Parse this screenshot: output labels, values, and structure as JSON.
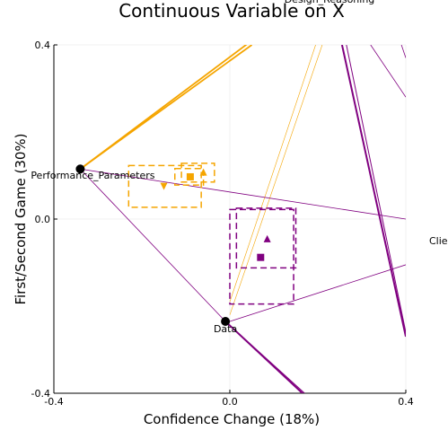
{
  "chart_data": {
    "type": "scatter",
    "title": "Continuous Variable on X",
    "xlabel": "Confidence Change (18%)",
    "ylabel": "First/Second Game (30%)",
    "xlim": [
      -0.4,
      0.4
    ],
    "ylim": [
      -0.4,
      0.4
    ],
    "xticks": [
      "-0.4",
      "0.0",
      "0.4"
    ],
    "yticks": [
      "-0.4",
      "0.0",
      "0.4"
    ],
    "grid": true,
    "legend": "none",
    "colors": {
      "orange": "#f5a500",
      "purple": "#800080",
      "node": "#000000"
    },
    "nodes": [
      {
        "label": "Performance_Parameters",
        "x": -0.34,
        "y": 0.115
      },
      {
        "label": "Data",
        "x": -0.01,
        "y": -0.235
      },
      {
        "label": "Design_Reasoning",
        "x": 0.2,
        "y": 0.92
      },
      {
        "label": "Clie",
        "x": 0.45,
        "y": -0.05
      }
    ],
    "orange_edges": [
      {
        "from": [
          -0.34,
          0.115
        ],
        "to": [
          0.05,
          0.4
        ]
      },
      {
        "from": [
          -0.34,
          0.115
        ],
        "to": [
          0.05,
          0.41
        ]
      }
    ],
    "orange_thin_edges": [
      {
        "from": [
          0.0,
          -0.19
        ],
        "to": [
          0.195,
          0.4
        ]
      },
      {
        "from": [
          0.0,
          -0.22
        ],
        "to": [
          0.21,
          0.4
        ]
      }
    ],
    "purple_edges": [
      {
        "from": [
          -0.34,
          0.115
        ],
        "to": [
          0.4,
          0.0
        ],
        "width": 0.8
      },
      {
        "from": [
          -0.34,
          0.115
        ],
        "to": [
          -0.01,
          -0.235
        ],
        "width": 0.8
      },
      {
        "from": [
          -0.01,
          -0.235
        ],
        "to": [
          0.165,
          -0.4
        ],
        "width": 2
      },
      {
        "from": [
          -0.01,
          -0.235
        ],
        "to": [
          0.17,
          -0.4
        ],
        "width": 1
      },
      {
        "from": [
          0.255,
          0.4
        ],
        "to": [
          0.4,
          -0.27
        ],
        "width": 2
      },
      {
        "from": [
          0.265,
          0.4
        ],
        "to": [
          0.4,
          -0.26
        ],
        "width": 1
      },
      {
        "from": [
          0.32,
          0.4
        ],
        "to": [
          0.4,
          0.28
        ],
        "width": 0.8
      },
      {
        "from": [
          0.39,
          0.4
        ],
        "to": [
          0.4,
          0.37
        ],
        "width": 0.8
      },
      {
        "from": [
          0.0,
          -0.235
        ],
        "to": [
          0.4,
          -0.105
        ],
        "width": 0.8
      }
    ],
    "series": [
      {
        "color": "orange",
        "markers": [
          {
            "shape": "square",
            "x": -0.09,
            "y": 0.097
          },
          {
            "shape": "triangle-up",
            "x": -0.06,
            "y": 0.108
          },
          {
            "shape": "triangle-down",
            "x": -0.15,
            "y": 0.075
          }
        ],
        "boxes": [
          {
            "x0": -0.23,
            "x1": -0.065,
            "y0": 0.027,
            "y1": 0.123
          },
          {
            "x0": -0.11,
            "x1": -0.035,
            "y0": 0.085,
            "y1": 0.128
          },
          {
            "x0": -0.125,
            "x1": -0.06,
            "y0": 0.078,
            "y1": 0.116
          }
        ]
      },
      {
        "color": "purple",
        "markers": [
          {
            "shape": "square",
            "x": 0.07,
            "y": -0.088
          },
          {
            "shape": "triangle-up",
            "x": 0.085,
            "y": -0.045
          }
        ],
        "boxes": [
          {
            "x0": 0.0,
            "x1": 0.145,
            "y0": -0.195,
            "y1": 0.022
          },
          {
            "x0": 0.015,
            "x1": 0.15,
            "y0": -0.112,
            "y1": 0.025
          }
        ]
      }
    ]
  }
}
